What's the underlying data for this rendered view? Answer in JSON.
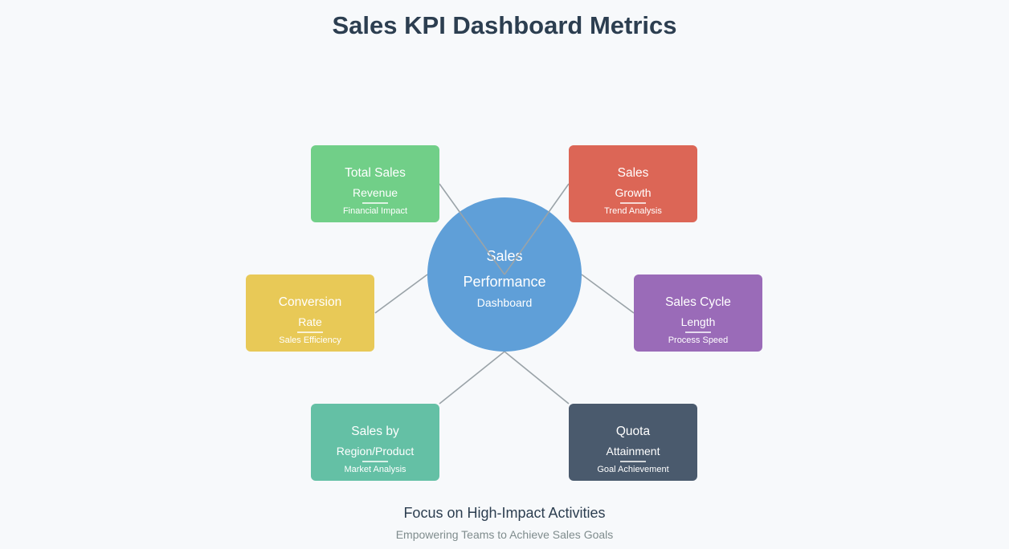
{
  "title": "Sales KPI Dashboard Metrics",
  "center": {
    "line1": "Sales",
    "line2": "Performance",
    "line3": "Dashboard",
    "color": "#5f9fd8"
  },
  "nodes": [
    {
      "id": "total-sales",
      "title": "Total Sales",
      "subtitle": "Revenue",
      "desc": "Financial Impact",
      "color": "#71cf88"
    },
    {
      "id": "sales-growth",
      "title": "Sales",
      "subtitle": "Growth",
      "desc": "Trend Analysis",
      "color": "#dc6656"
    },
    {
      "id": "conversion-rate",
      "title": "Conversion",
      "subtitle": "Rate",
      "desc": "Sales Efficiency",
      "color": "#e8c957"
    },
    {
      "id": "sales-cycle-length",
      "title": "Sales Cycle",
      "subtitle": "Length",
      "desc": "Process Speed",
      "color": "#9a6bb8"
    },
    {
      "id": "sales-by-region",
      "title": "Sales by",
      "subtitle": "Region/Product",
      "desc": "Market Analysis",
      "color": "#64c0a5"
    },
    {
      "id": "quota-attainment",
      "title": "Quota",
      "subtitle": "Attainment",
      "desc": "Goal Achievement",
      "color": "#4a5a6d"
    }
  ],
  "connector_color": "#9aa3a8",
  "footer": {
    "main": "Focus on High-Impact Activities",
    "sub": "Empowering Teams to Achieve Sales Goals"
  }
}
